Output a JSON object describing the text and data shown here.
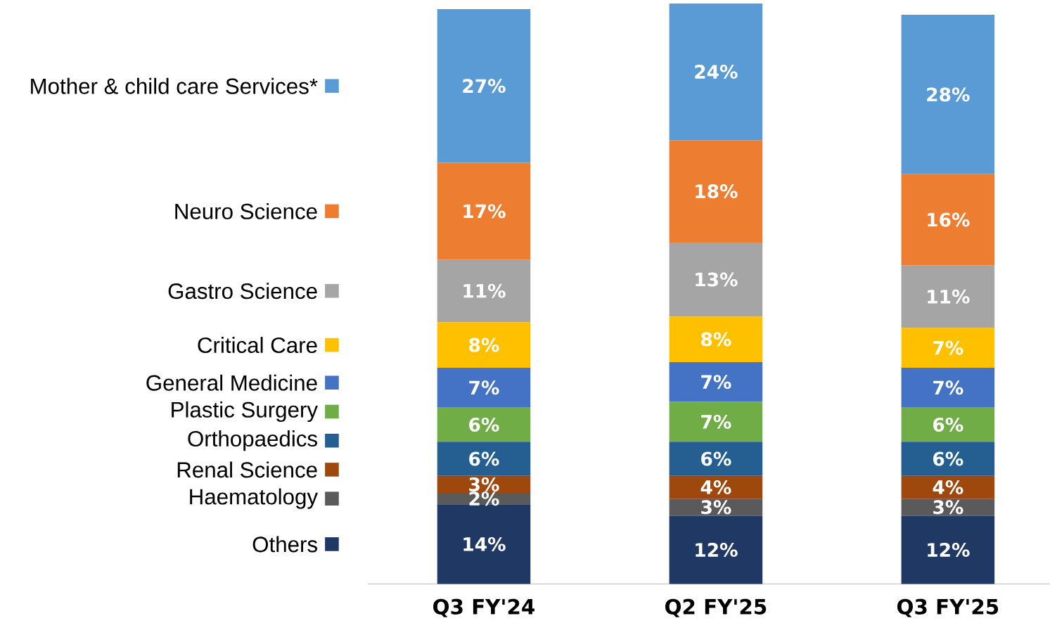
{
  "chart_data": {
    "type": "bar",
    "stacked": true,
    "legend": "left",
    "categories": [
      "Q3 FY'24",
      "Q2 FY'25",
      "Q3 FY'25"
    ],
    "series": [
      {
        "name": "Others",
        "color": "#203864",
        "values": [
          14,
          12,
          12
        ],
        "value_labels": [
          "14%",
          "12%",
          "12%"
        ]
      },
      {
        "name": "Haematology",
        "color": "#5a5a5a",
        "values": [
          2,
          3,
          3
        ],
        "value_labels": [
          "2%",
          "3%",
          "3%"
        ]
      },
      {
        "name": "Renal Science",
        "color": "#9e480e",
        "values": [
          3,
          4,
          4
        ],
        "value_labels": [
          "3%",
          "4%",
          "4%"
        ]
      },
      {
        "name": "Orthopaedics",
        "color": "#255e91",
        "values": [
          6,
          6,
          6
        ],
        "value_labels": [
          "6%",
          "6%",
          "6%"
        ]
      },
      {
        "name": "Plastic Surgery",
        "color": "#70ad47",
        "values": [
          6,
          7,
          6
        ],
        "value_labels": [
          "6%",
          "7%",
          "6%"
        ]
      },
      {
        "name": "General Medicine",
        "color": "#4472c4",
        "values": [
          7,
          7,
          7
        ],
        "value_labels": [
          "7%",
          "7%",
          "7%"
        ]
      },
      {
        "name": "Critical Care",
        "color": "#ffc000",
        "values": [
          8,
          8,
          7
        ],
        "value_labels": [
          "8%",
          "8%",
          "7%"
        ]
      },
      {
        "name": "Gastro Science",
        "color": "#a5a5a5",
        "values": [
          11,
          13,
          11
        ],
        "value_labels": [
          "11%",
          "13%",
          "11%"
        ]
      },
      {
        "name": "Neuro Science",
        "color": "#ed7d31",
        "values": [
          17,
          18,
          16
        ],
        "value_labels": [
          "17%",
          "18%",
          "16%"
        ]
      },
      {
        "name": "Mother & child care Services*",
        "color": "#5b9bd5",
        "values": [
          27,
          24,
          28
        ],
        "value_labels": [
          "27%",
          "24%",
          "28%"
        ]
      }
    ]
  }
}
